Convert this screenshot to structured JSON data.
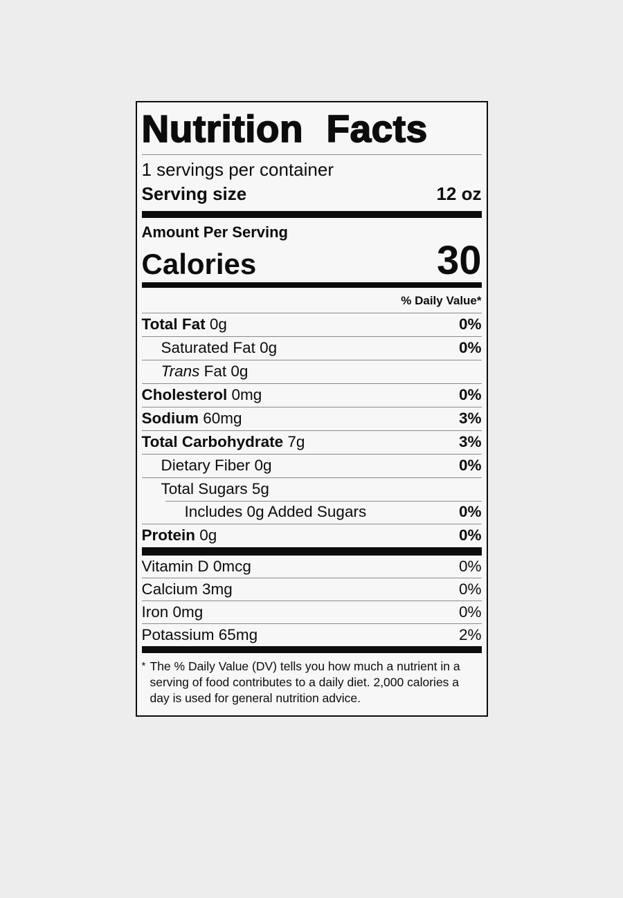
{
  "colors": {
    "page_bg": "#ededed",
    "label_bg": "#f7f7f7",
    "ink": "#0c0c0c",
    "hairline": "#8a8a8a"
  },
  "label": {
    "title": "Nutrition Facts",
    "servings_per_container": "1 servings per container",
    "serving_size_label": "Serving size",
    "serving_size_value": "12 oz",
    "amount_per_serving": "Amount Per Serving",
    "calories_label": "Calories",
    "calories_value": "30",
    "daily_value_header": "% Daily Value*",
    "nutrients": [
      {
        "name": "Total Fat",
        "amount": "0g",
        "dv": "0%",
        "indent": 0,
        "emphasis": "bold"
      },
      {
        "name": "Saturated Fat",
        "amount": "0g",
        "dv": "0%",
        "indent": 1,
        "emphasis": ""
      },
      {
        "name": "Trans",
        "amount": "Fat 0g",
        "dv": "",
        "indent": 1,
        "emphasis": "italic"
      },
      {
        "name": "Cholesterol",
        "amount": "0mg",
        "dv": "0%",
        "indent": 0,
        "emphasis": "bold"
      },
      {
        "name": "Sodium",
        "amount": "60mg",
        "dv": "3%",
        "indent": 0,
        "emphasis": "bold"
      },
      {
        "name": "Total Carbohydrate",
        "amount": "7g",
        "dv": "3%",
        "indent": 0,
        "emphasis": "bold"
      },
      {
        "name": "Dietary Fiber",
        "amount": "0g",
        "dv": "0%",
        "indent": 1,
        "emphasis": ""
      },
      {
        "name": "Total Sugars",
        "amount": "5g",
        "dv": "",
        "indent": 1,
        "emphasis": ""
      },
      {
        "name": "Includes 0g Added Sugars",
        "amount": "",
        "dv": "0%",
        "indent": 2,
        "emphasis": "",
        "partial_rule": true
      },
      {
        "name": "Protein",
        "amount": "0g",
        "dv": "0%",
        "indent": 0,
        "emphasis": "bold"
      }
    ],
    "vitamins": [
      {
        "name": "Vitamin D",
        "amount": "0mcg",
        "dv": "0%"
      },
      {
        "name": "Calcium",
        "amount": "3mg",
        "dv": "0%"
      },
      {
        "name": "Iron",
        "amount": "0mg",
        "dv": "0%"
      },
      {
        "name": "Potassium",
        "amount": "65mg",
        "dv": "2%"
      }
    ],
    "footnote_marker": "*",
    "footnote_text": "The % Daily Value (DV) tells you how much a nutrient in a serving of food contributes to a daily diet. 2,000 calories a day is used for general nutrition advice."
  }
}
